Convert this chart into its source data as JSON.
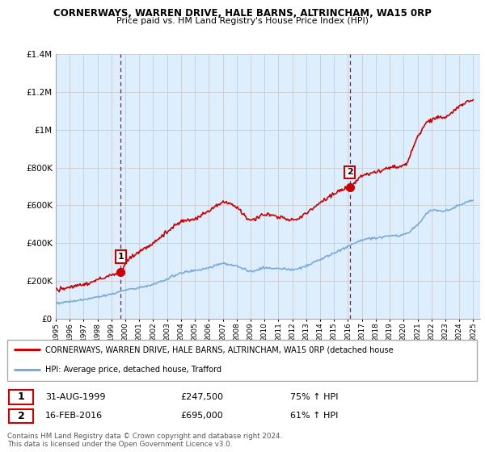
{
  "title": "CORNERWAYS, WARREN DRIVE, HALE BARNS, ALTRINCHAM, WA15 0RP",
  "subtitle": "Price paid vs. HM Land Registry's House Price Index (HPI)",
  "legend_line1": "CORNERWAYS, WARREN DRIVE, HALE BARNS, ALTRINCHAM, WA15 0RP (detached house",
  "legend_line2": "HPI: Average price, detached house, Trafford",
  "footer1": "Contains HM Land Registry data © Crown copyright and database right 2024.",
  "footer2": "This data is licensed under the Open Government Licence v3.0.",
  "sale1_date": "31-AUG-1999",
  "sale1_price": "£247,500",
  "sale1_hpi": "75% ↑ HPI",
  "sale2_date": "16-FEB-2016",
  "sale2_price": "£695,000",
  "sale2_hpi": "61% ↑ HPI",
  "red_color": "#cc0000",
  "blue_color": "#7aabdb",
  "grid_color": "#cccccc",
  "background_color": "#ffffff",
  "plot_bg_color": "#ddeeff",
  "ylim": [
    0,
    1400000
  ],
  "yticks": [
    0,
    200000,
    400000,
    600000,
    800000,
    1000000,
    1200000,
    1400000
  ],
  "xlim_start": 1995.0,
  "xlim_end": 2025.5,
  "hpi_knots_x": [
    1995,
    1996,
    1997,
    1998,
    1999,
    2000,
    2001,
    2002,
    2003,
    2004,
    2005,
    2006,
    2007,
    2008,
    2009,
    2010,
    2011,
    2012,
    2013,
    2014,
    2015,
    2016,
    2017,
    2018,
    2019,
    2020,
    2021,
    2022,
    2023,
    2024,
    2025
  ],
  "hpi_knots_y": [
    82000,
    90000,
    100000,
    115000,
    130000,
    152000,
    165000,
    182000,
    210000,
    242000,
    255000,
    268000,
    292000,
    278000,
    252000,
    268000,
    265000,
    260000,
    280000,
    312000,
    348000,
    382000,
    415000,
    428000,
    438000,
    445000,
    498000,
    572000,
    572000,
    600000,
    632000
  ],
  "red_knots_x": [
    1995,
    1996,
    1997,
    1998,
    1999,
    1999.67,
    2000,
    2001,
    2002,
    2003,
    2004,
    2005,
    2006,
    2007,
    2008,
    2009,
    2010,
    2011,
    2012,
    2013,
    2014,
    2015,
    2016,
    2016.13,
    2017,
    2018,
    2019,
    2020,
    2021,
    2022,
    2023,
    2024,
    2025
  ],
  "red_knots_y": [
    155000,
    165000,
    182000,
    205000,
    232000,
    247500,
    295000,
    355000,
    400000,
    460000,
    512000,
    532000,
    568000,
    618000,
    592000,
    522000,
    550000,
    538000,
    522000,
    558000,
    615000,
    662000,
    690000,
    695000,
    758000,
    778000,
    800000,
    808000,
    958000,
    1058000,
    1068000,
    1125000,
    1155000
  ],
  "sale1_x": 1999.67,
  "sale1_y": 247500,
  "sale2_x": 2016.13,
  "sale2_y": 695000,
  "vline1_x": 1999.67,
  "vline2_x": 2016.13
}
